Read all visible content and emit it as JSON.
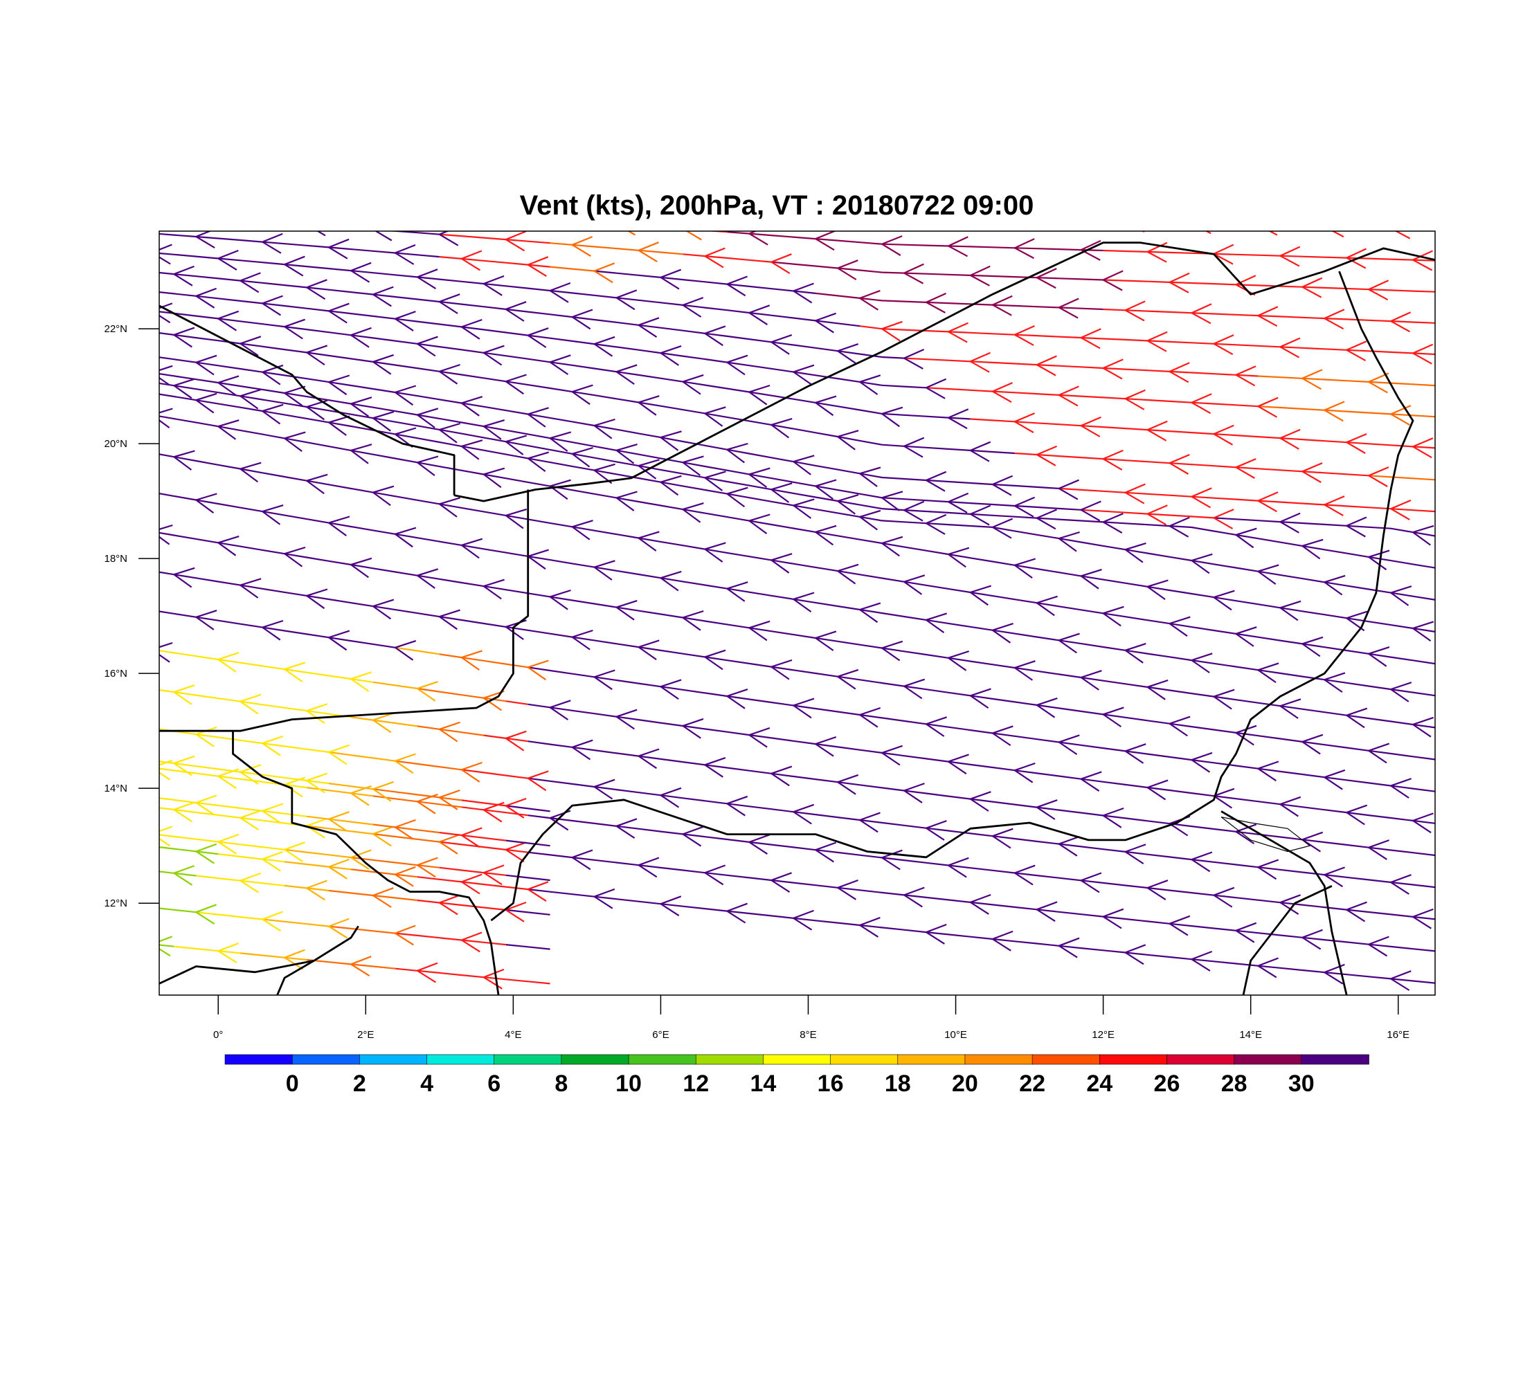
{
  "title": "Vent (kts), 200hPa, VT : 20180722  09:00",
  "map": {
    "lon_range": [
      -0.8,
      16.5
    ],
    "lat_range": [
      10.4,
      23.7
    ],
    "x_ticks": [
      {
        "value": 0,
        "label": "0°"
      },
      {
        "value": 2,
        "label": "2°E"
      },
      {
        "value": 4,
        "label": "4°E"
      },
      {
        "value": 6,
        "label": "6°E"
      },
      {
        "value": 8,
        "label": "8°E"
      },
      {
        "value": 10,
        "label": "10°E"
      },
      {
        "value": 12,
        "label": "12°E"
      },
      {
        "value": 14,
        "label": "14°E"
      },
      {
        "value": 16,
        "label": "16°E"
      }
    ],
    "y_ticks": [
      {
        "value": 12,
        "label": "12°N"
      },
      {
        "value": 14,
        "label": "14°N"
      },
      {
        "value": 16,
        "label": "16°N"
      },
      {
        "value": 18,
        "label": "18°N"
      },
      {
        "value": 20,
        "label": "20°N"
      },
      {
        "value": 22,
        "label": "22°N"
      }
    ],
    "borders": [
      [
        [
          3.2,
          19.1
        ],
        [
          3.6,
          19.0
        ],
        [
          4.3,
          19.2
        ],
        [
          5.0,
          19.3
        ],
        [
          5.6,
          19.4
        ],
        [
          6.8,
          20.2
        ],
        [
          8.0,
          21.0
        ],
        [
          9.0,
          21.6
        ],
        [
          10.5,
          22.6
        ],
        [
          11.5,
          23.2
        ],
        [
          12.0,
          23.5
        ],
        [
          12.5,
          23.5
        ],
        [
          13.5,
          23.3
        ],
        [
          14.0,
          22.6
        ],
        [
          15.0,
          23.0
        ],
        [
          15.8,
          23.4
        ],
        [
          16.5,
          23.2
        ]
      ],
      [
        [
          -0.8,
          22.4
        ],
        [
          1.0,
          21.2
        ],
        [
          1.2,
          20.9
        ],
        [
          1.7,
          20.5
        ],
        [
          2.5,
          20.0
        ],
        [
          3.2,
          19.8
        ],
        [
          3.2,
          19.1
        ]
      ],
      [
        [
          4.2,
          19.2
        ],
        [
          4.2,
          17.0
        ],
        [
          4.0,
          16.8
        ],
        [
          4.0,
          16.0
        ],
        [
          3.8,
          15.6
        ],
        [
          3.5,
          15.4
        ],
        [
          1.0,
          15.2
        ],
        [
          0.3,
          15.0
        ],
        [
          -0.8,
          15.0
        ]
      ],
      [
        [
          0.2,
          15.0
        ],
        [
          0.2,
          14.6
        ],
        [
          0.6,
          14.2
        ],
        [
          1.0,
          14.0
        ],
        [
          1.0,
          13.4
        ],
        [
          1.6,
          13.2
        ],
        [
          2.0,
          12.7
        ],
        [
          2.3,
          12.4
        ],
        [
          2.6,
          12.2
        ],
        [
          3.0,
          12.2
        ],
        [
          3.4,
          12.1
        ],
        [
          3.6,
          11.7
        ],
        [
          3.7,
          11.3
        ],
        [
          3.8,
          10.4
        ]
      ],
      [
        [
          3.7,
          11.7
        ],
        [
          4.0,
          12.0
        ],
        [
          4.1,
          12.7
        ],
        [
          4.4,
          13.2
        ],
        [
          4.8,
          13.7
        ],
        [
          5.5,
          13.8
        ],
        [
          6.2,
          13.5
        ],
        [
          6.9,
          13.2
        ],
        [
          7.5,
          13.2
        ],
        [
          8.1,
          13.2
        ],
        [
          8.8,
          12.9
        ],
        [
          9.6,
          12.8
        ],
        [
          10.2,
          13.3
        ],
        [
          11.0,
          13.4
        ],
        [
          11.8,
          13.1
        ],
        [
          12.3,
          13.1
        ],
        [
          13.0,
          13.4
        ],
        [
          13.5,
          13.8
        ],
        [
          13.6,
          14.2
        ],
        [
          13.8,
          14.6
        ],
        [
          14.0,
          15.2
        ],
        [
          14.4,
          15.6
        ],
        [
          15.0,
          16.0
        ],
        [
          15.5,
          16.8
        ],
        [
          15.7,
          17.4
        ],
        [
          15.8,
          18.4
        ],
        [
          15.9,
          19.2
        ],
        [
          16.0,
          19.8
        ],
        [
          16.2,
          20.4
        ],
        [
          16.0,
          20.8
        ],
        [
          15.7,
          21.5
        ],
        [
          15.5,
          22.0
        ],
        [
          15.2,
          23.0
        ]
      ],
      [
        [
          13.6,
          13.6
        ],
        [
          14.0,
          13.3
        ],
        [
          14.4,
          13.0
        ],
        [
          14.8,
          12.7
        ],
        [
          15.0,
          12.3
        ],
        [
          15.1,
          11.5
        ],
        [
          15.3,
          10.4
        ]
      ],
      [
        [
          15.1,
          12.3
        ],
        [
          14.6,
          12.0
        ],
        [
          14.3,
          11.5
        ],
        [
          14.0,
          11.0
        ],
        [
          13.9,
          10.4
        ]
      ],
      [
        [
          -0.8,
          10.6
        ],
        [
          -0.3,
          10.9
        ],
        [
          0.5,
          10.8
        ],
        [
          1.3,
          11.0
        ],
        [
          1.8,
          11.4
        ],
        [
          1.9,
          11.6
        ]
      ],
      [
        [
          1.3,
          11.0
        ],
        [
          0.9,
          10.7
        ],
        [
          0.8,
          10.4
        ]
      ]
    ],
    "lake": [
      [
        13.6,
        13.5
      ],
      [
        14.0,
        13.1
      ],
      [
        14.5,
        12.9
      ],
      [
        14.8,
        13.0
      ],
      [
        14.5,
        13.3
      ],
      [
        14.0,
        13.4
      ]
    ]
  },
  "wind_field": {
    "units": "kts",
    "level": "200hPa",
    "valid_time": "20180722  09:00",
    "dominant_direction": "easterly (flow toward the west-northwest)",
    "regions": [
      {
        "area": "most of domain",
        "speed_kts": 30,
        "color": "#4B0082"
      },
      {
        "area": "northeast jet 19-23°N, 8-16.5°E",
        "speed_kts": 25,
        "color": "#FF1A1A"
      },
      {
        "area": "southwest 10.5-16°N, 0-4°E",
        "speed_kts": 17,
        "color": "#FFE600"
      }
    ]
  },
  "colorbar": {
    "labels": [
      "0",
      "2",
      "4",
      "6",
      "8",
      "10",
      "12",
      "14",
      "16",
      "18",
      "20",
      "22",
      "24",
      "26",
      "28",
      "30"
    ],
    "colors": [
      "#1400FF",
      "#0A64FF",
      "#00B4FF",
      "#00EBDC",
      "#00D27D",
      "#00AA28",
      "#46C31E",
      "#A0DC00",
      "#FFFF00",
      "#FFDC00",
      "#FFB400",
      "#FF8C00",
      "#FF5000",
      "#FF0A0A",
      "#DC0032",
      "#8C0050",
      "#4B0082"
    ]
  }
}
